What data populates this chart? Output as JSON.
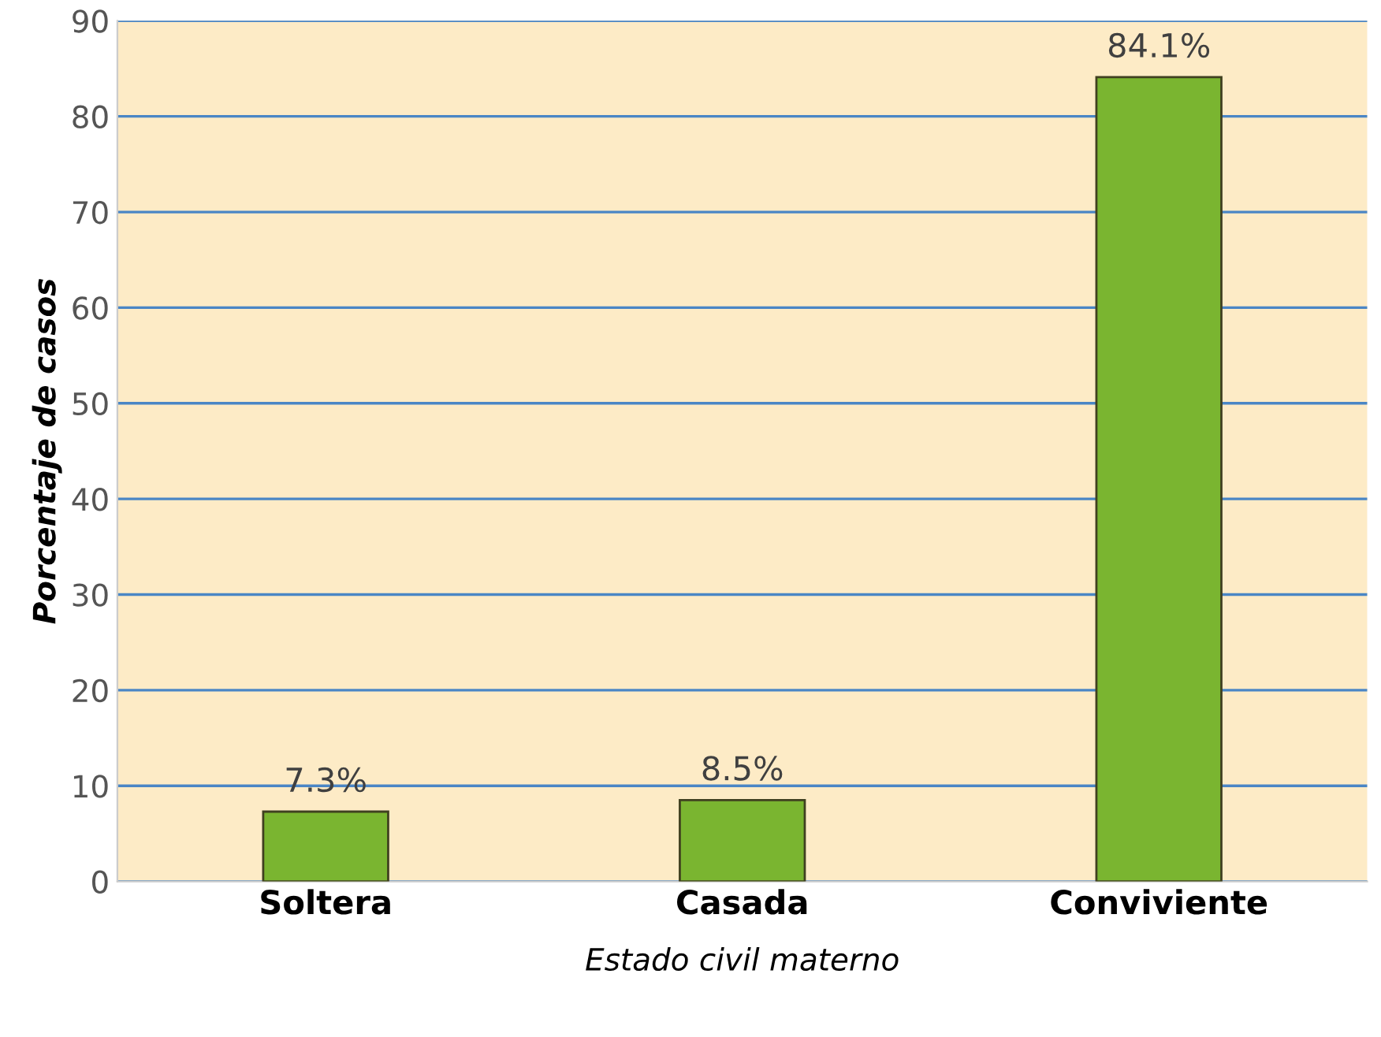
{
  "chart_data": {
    "type": "bar",
    "xlabel": "Estado civil materno",
    "ylabel": "Porcentaje de casos",
    "categories": [
      "Soltera",
      "Casada",
      "Conviviente"
    ],
    "values": [
      7.3,
      8.5,
      84.1
    ],
    "value_labels": [
      "7.3%",
      "8.5%",
      "84.1%"
    ],
    "color": "#7ab530",
    "ylim": [
      0,
      90
    ],
    "yticks": [
      0,
      10,
      20,
      30,
      40,
      50,
      60,
      70,
      80,
      90
    ],
    "grid": "y"
  }
}
